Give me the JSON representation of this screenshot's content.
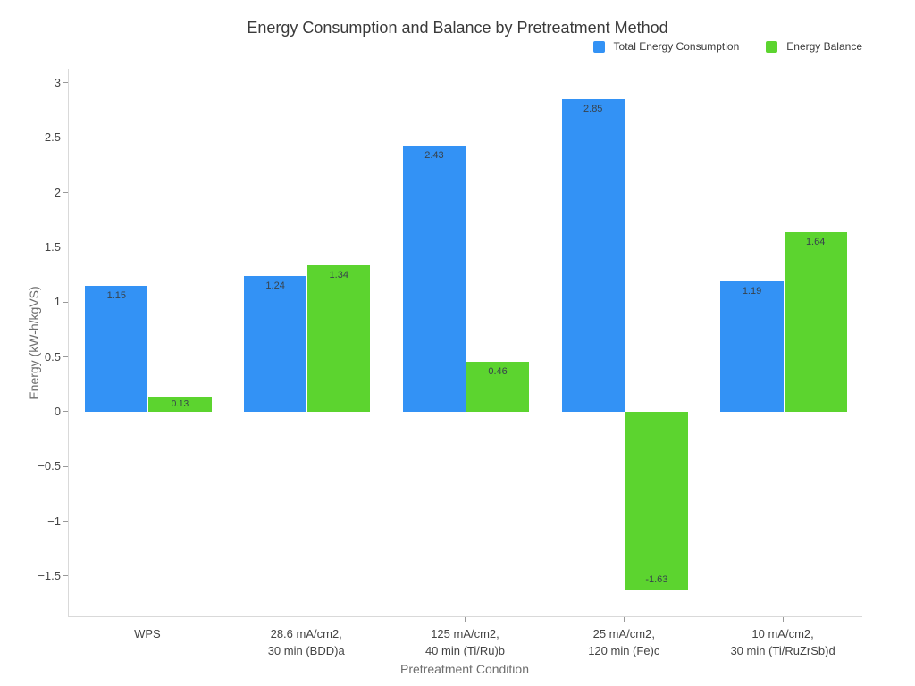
{
  "chart_data": {
    "type": "bar",
    "title": "Energy Consumption and Balance by Pretreatment Method",
    "xlabel": "Pretreatment Condition",
    "ylabel": "Energy (kW-h/kgVS)",
    "categories": [
      [
        "WPS"
      ],
      [
        "28.6 mA/cm2,",
        "30 min (BDD)a"
      ],
      [
        "125 mA/cm2,",
        "40 min (Ti/Ru)b"
      ],
      [
        "25 mA/cm2,",
        "120 min (Fe)c"
      ],
      [
        "10 mA/cm2,",
        "30 min (Ti/RuZrSb)d"
      ]
    ],
    "series": [
      {
        "name": "Total Energy Consumption",
        "color": "#3392F5",
        "values": [
          1.15,
          1.24,
          2.43,
          2.85,
          1.19
        ],
        "labels": [
          "1.15",
          "1.24",
          "2.43",
          "2.85",
          "1.19"
        ]
      },
      {
        "name": "Energy Balance",
        "color": "#5CD42F",
        "values": [
          0.13,
          1.34,
          0.46,
          -1.63,
          1.64
        ],
        "labels": [
          "0.13",
          "1.34",
          "0.46",
          "-1.63",
          "1.64"
        ]
      }
    ],
    "yticks": [
      3,
      2.5,
      2,
      1.5,
      1,
      0.5,
      0,
      -0.5,
      -1,
      -1.5
    ],
    "ytick_labels": [
      "3",
      "2.5",
      "2",
      "1.5",
      "1",
      "0.5",
      "0",
      "−0.5",
      "−1",
      "−1.5"
    ],
    "ylim": [
      -1.875,
      3.13
    ],
    "grid": false,
    "legend_position": "top-right",
    "colors": {
      "bar_blue": "#3392F5",
      "bar_green": "#5CD42F",
      "axis_line": "#D9D9D9",
      "tick_mark": "#999999",
      "tick_text": "#444444",
      "axis_title_text": "#6E6E6E",
      "title_text": "#3A3A3A",
      "value_label_text": "#37424C"
    }
  }
}
